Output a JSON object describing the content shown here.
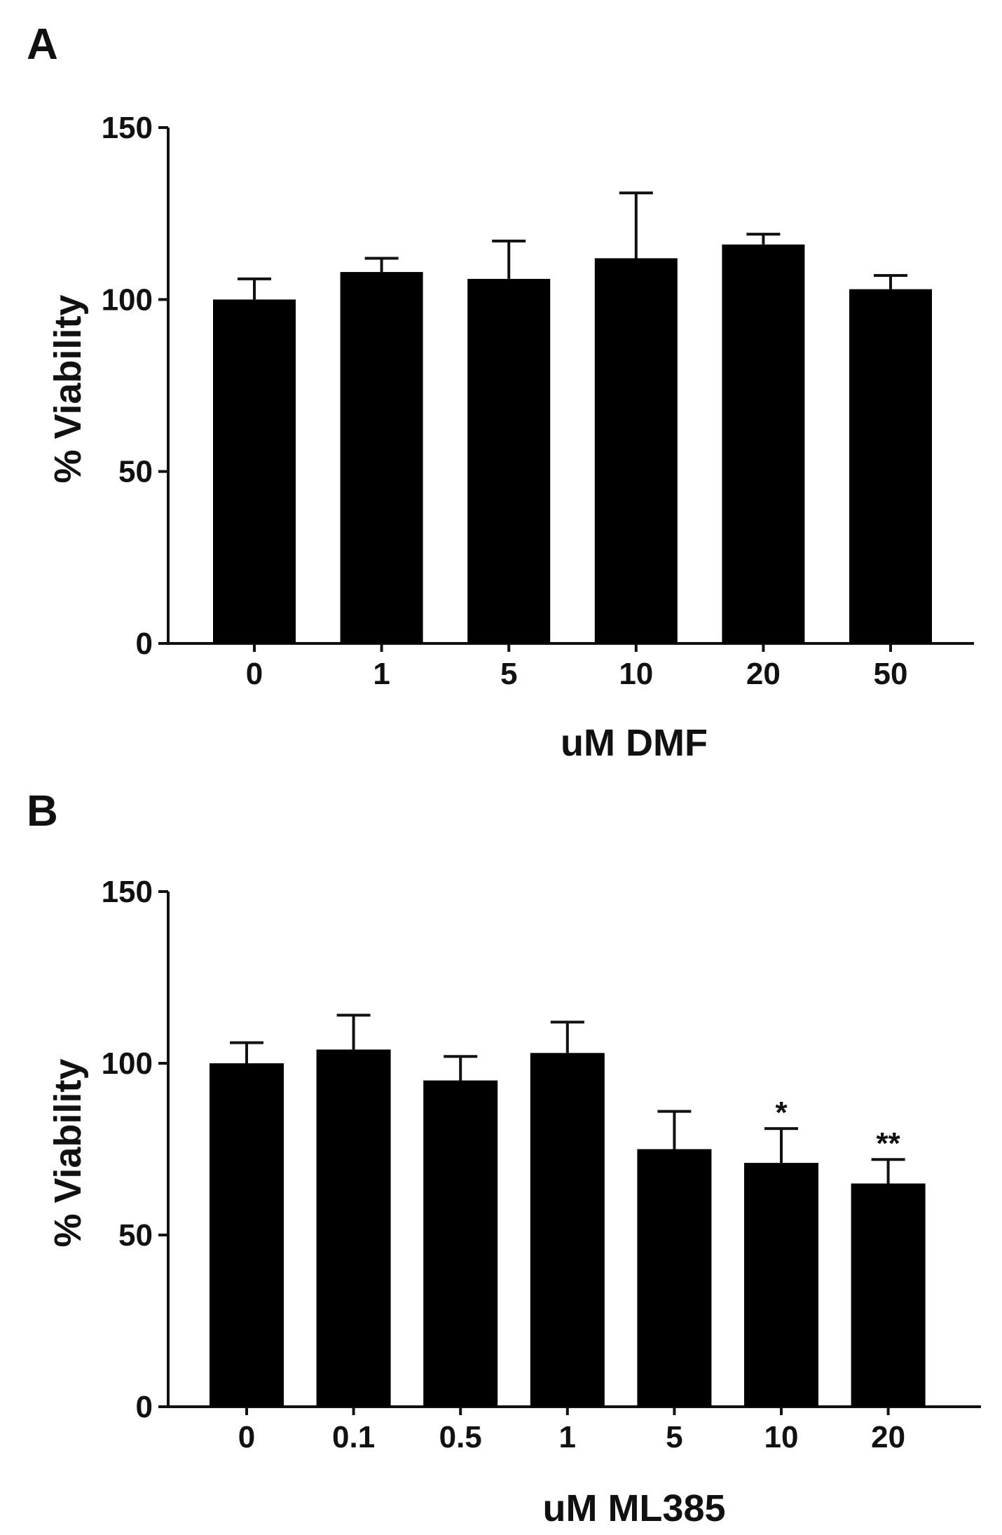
{
  "chart_data": [
    {
      "panel": "A",
      "type": "bar",
      "categories": [
        "0",
        "1",
        "5",
        "10",
        "20",
        "50"
      ],
      "values": [
        100,
        108,
        106,
        112,
        116,
        103
      ],
      "errors": [
        6,
        4,
        11,
        19,
        3,
        4
      ],
      "annotations": [
        "",
        "",
        "",
        "",
        "",
        ""
      ],
      "xlabel": "uM DMF",
      "ylabel": "% Viability",
      "ylim": [
        0,
        150
      ],
      "yticks": [
        "0",
        "50",
        "100",
        "150"
      ],
      "grid": false,
      "legend": "none",
      "bar_color": "#000000"
    },
    {
      "panel": "B",
      "type": "bar",
      "categories": [
        "0",
        "0.1",
        "0.5",
        "1",
        "5",
        "10",
        "20"
      ],
      "values": [
        100,
        104,
        95,
        103,
        75,
        71,
        65
      ],
      "errors": [
        6,
        10,
        7,
        9,
        11,
        10,
        7
      ],
      "annotations": [
        "",
        "",
        "",
        "",
        "",
        "*",
        "**"
      ],
      "xlabel": "uM  ML385",
      "ylabel": "% Viability",
      "ylim": [
        0,
        150
      ],
      "yticks": [
        "0",
        "50",
        "100",
        "150"
      ],
      "grid": false,
      "legend": "none",
      "bar_color": "#000000"
    }
  ]
}
